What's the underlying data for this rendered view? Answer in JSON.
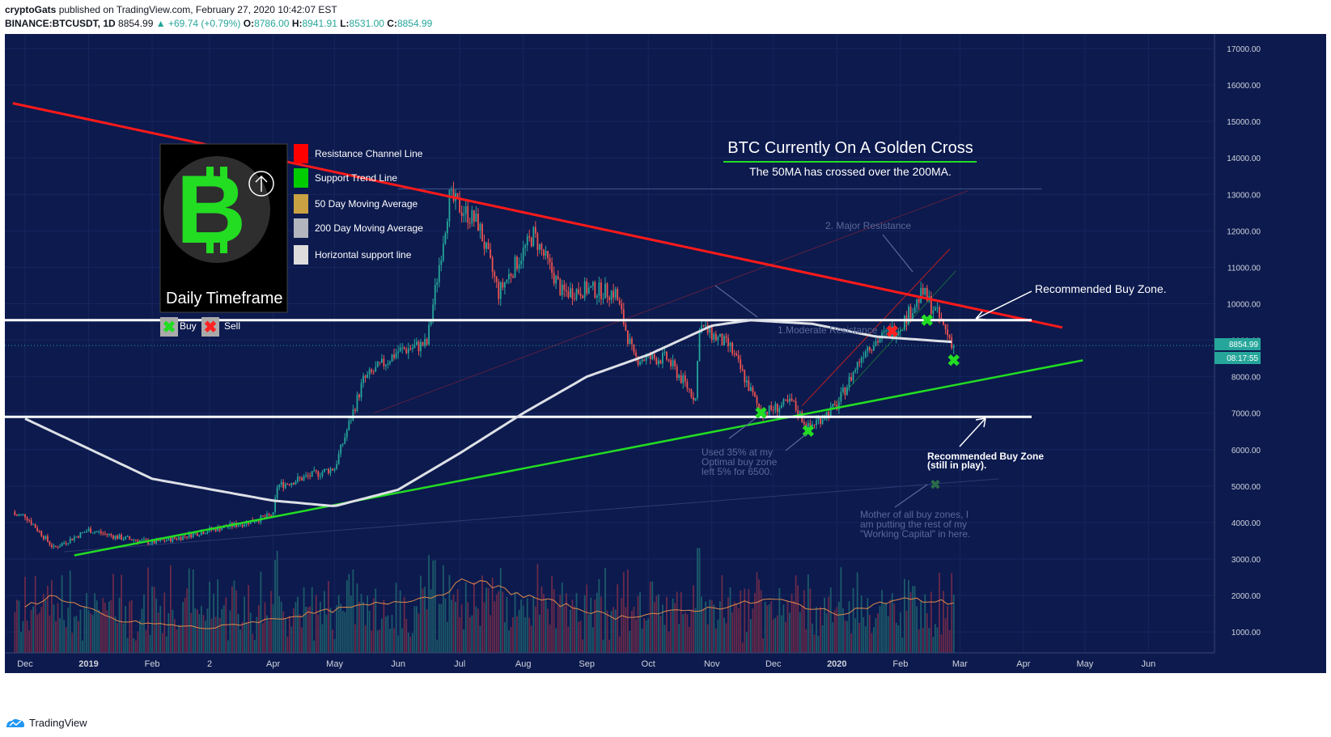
{
  "header": {
    "author": "cryptoGats",
    "published_text": "published on TradingView.com, February 27, 2020 10:42:07 EST",
    "symbol": "BINANCE:BTCUSDT, 1D",
    "last": "8854.99",
    "change": "+69.74 (+0.79%)",
    "o_label": "O:",
    "o_value": "8786.00",
    "h_label": "H:",
    "h_value": "8941.91",
    "l_label": "L:",
    "l_value": "8531.00",
    "c_label": "C:",
    "c_value": "8854.99"
  },
  "footer": {
    "brand": "TradingView"
  },
  "legend": {
    "title": "Daily Timeframe",
    "items": [
      {
        "label": "Resistance Channel Line",
        "color": "#ff0000"
      },
      {
        "label": "Support Trend Line",
        "color": "#00cc00"
      },
      {
        "label": "50 Day Moving Average",
        "color": "#c9a042"
      },
      {
        "label": "200 Day Moving Average",
        "color": "#b2b5be"
      },
      {
        "label": "Horizontal support line",
        "color": "#dddddd"
      }
    ],
    "buy_label": "Buy",
    "sell_label": "Sell"
  },
  "annotations": {
    "headline": "BTC Currently On A Golden Cross",
    "subline": "The 50MA has crossed over the 200MA.",
    "buy_zone_1": "Recommended Buy Zone.",
    "buy_zone_2a": "Recommended Buy Zone",
    "buy_zone_2b": "(still in play).",
    "major_res": "2. Major Resistance",
    "mod_res": "1.Moderate Resistance",
    "used_1": "Used 35% at my",
    "used_2": "Optimal buy zone",
    "used_3": "left 5% for 6500.",
    "mother_1": "Mother of all buy zones, I",
    "mother_2": "am putting the rest of my",
    "mother_3": "\"Working Capital\" in here."
  },
  "price_labels": {
    "current": "8854.99",
    "countdown": "08:17:55"
  },
  "colors": {
    "background": "#0c1a4e",
    "resistance": "#ff1a1a",
    "support": "#22dd22",
    "horizontal": "#ffffff",
    "ma200": "#dde0e6",
    "ma50": "#c9a042",
    "up": "#26a69a",
    "down": "#ef5350"
  },
  "chart_data": {
    "type": "candlestick",
    "ylim": [
      900,
      17400
    ],
    "y_ticks": [
      "17000.00",
      "16000.00",
      "15000.00",
      "14000.00",
      "13000.00",
      "12000.00",
      "11000.00",
      "10000.00",
      "9000.00",
      "8000.00",
      "7000.00",
      "6000.00",
      "5000.00",
      "4000.00",
      "3000.00",
      "2000.00",
      "1000.00"
    ],
    "x_ticks": [
      "Dec",
      "2019",
      "Feb",
      "2",
      "Apr",
      "May",
      "Jun",
      "Jul",
      "Aug",
      "Sep",
      "Oct",
      "Nov",
      "Dec",
      "2020",
      "Feb",
      "Mar",
      "Apr",
      "May",
      "Jun"
    ],
    "price_path": [
      {
        "date": "2018-12-01",
        "close": 4200
      },
      {
        "date": "2018-12-15",
        "close": 3300
      },
      {
        "date": "2019-01-01",
        "close": 3800
      },
      {
        "date": "2019-01-15",
        "close": 3600
      },
      {
        "date": "2019-02-01",
        "close": 3450
      },
      {
        "date": "2019-02-15",
        "close": 3600
      },
      {
        "date": "2019-03-01",
        "close": 3800
      },
      {
        "date": "2019-03-15",
        "close": 3950
      },
      {
        "date": "2019-04-01",
        "close": 4200
      },
      {
        "date": "2019-04-03",
        "close": 5000
      },
      {
        "date": "2019-04-20",
        "close": 5300
      },
      {
        "date": "2019-05-01",
        "close": 5500
      },
      {
        "date": "2019-05-15",
        "close": 7900
      },
      {
        "date": "2019-06-01",
        "close": 8700
      },
      {
        "date": "2019-06-15",
        "close": 8900
      },
      {
        "date": "2019-06-26",
        "close": 12900
      },
      {
        "date": "2019-07-10",
        "close": 12200
      },
      {
        "date": "2019-07-20",
        "close": 10300
      },
      {
        "date": "2019-08-06",
        "close": 11900
      },
      {
        "date": "2019-08-20",
        "close": 10300
      },
      {
        "date": "2019-09-01",
        "close": 10400
      },
      {
        "date": "2019-09-15",
        "close": 10300
      },
      {
        "date": "2019-09-24",
        "close": 8500
      },
      {
        "date": "2019-10-10",
        "close": 8500
      },
      {
        "date": "2019-10-24",
        "close": 7400
      },
      {
        "date": "2019-10-26",
        "close": 9400
      },
      {
        "date": "2019-11-10",
        "close": 8800
      },
      {
        "date": "2019-11-25",
        "close": 7000
      },
      {
        "date": "2019-12-10",
        "close": 7300
      },
      {
        "date": "2019-12-18",
        "close": 6600
      },
      {
        "date": "2020-01-01",
        "close": 7200
      },
      {
        "date": "2020-01-15",
        "close": 8800
      },
      {
        "date": "2020-02-01",
        "close": 9400
      },
      {
        "date": "2020-02-12",
        "close": 10300
      },
      {
        "date": "2020-02-20",
        "close": 9600
      },
      {
        "date": "2020-02-27",
        "close": 8855
      }
    ],
    "ma200_path": [
      {
        "date": "2018-12-01",
        "value": 6850
      },
      {
        "date": "2019-02-01",
        "value": 5200
      },
      {
        "date": "2019-04-01",
        "value": 4600
      },
      {
        "date": "2019-05-01",
        "value": 4450
      },
      {
        "date": "2019-06-01",
        "value": 4900
      },
      {
        "date": "2019-07-01",
        "value": 5900
      },
      {
        "date": "2019-08-01",
        "value": 7000
      },
      {
        "date": "2019-09-01",
        "value": 8000
      },
      {
        "date": "2019-10-01",
        "value": 8600
      },
      {
        "date": "2019-11-01",
        "value": 9400
      },
      {
        "date": "2019-11-20",
        "value": 9550
      },
      {
        "date": "2019-12-20",
        "value": 9450
      },
      {
        "date": "2020-01-20",
        "value": 9100
      },
      {
        "date": "2020-02-27",
        "value": 8950
      }
    ],
    "volume_ma": [
      {
        "date": "2018-12-01",
        "value": 1700
      },
      {
        "date": "2018-12-15",
        "value": 2000
      },
      {
        "date": "2019-01-15",
        "value": 1300
      },
      {
        "date": "2019-03-01",
        "value": 1100
      },
      {
        "date": "2019-05-01",
        "value": 1600
      },
      {
        "date": "2019-06-20",
        "value": 2000
      },
      {
        "date": "2019-07-05",
        "value": 2450
      },
      {
        "date": "2019-08-01",
        "value": 2000
      },
      {
        "date": "2019-09-15",
        "value": 1400
      },
      {
        "date": "2019-11-01",
        "value": 1650
      },
      {
        "date": "2019-12-01",
        "value": 1900
      },
      {
        "date": "2020-01-01",
        "value": 1500
      },
      {
        "date": "2020-02-01",
        "value": 1900
      },
      {
        "date": "2020-02-27",
        "value": 1800
      }
    ],
    "resistance_line": [
      {
        "date": "2018-11-25",
        "value": 15500
      },
      {
        "date": "2020-04-20",
        "value": 9350
      }
    ],
    "support_line": [
      {
        "date": "2018-12-25",
        "value": 3100
      },
      {
        "date": "2020-04-30",
        "value": 8450
      }
    ],
    "horizontal_lines": [
      9550,
      6900
    ],
    "buy_markers": [
      {
        "date": "2019-11-25",
        "value": 7000
      },
      {
        "date": "2019-12-18",
        "value": 6500
      },
      {
        "date": "2020-02-14",
        "value": 9550
      },
      {
        "date": "2020-02-27",
        "value": 8450
      }
    ],
    "sell_markers": [
      {
        "date": "2020-01-28",
        "value": 9250
      }
    ],
    "current_price": 8854.99
  }
}
